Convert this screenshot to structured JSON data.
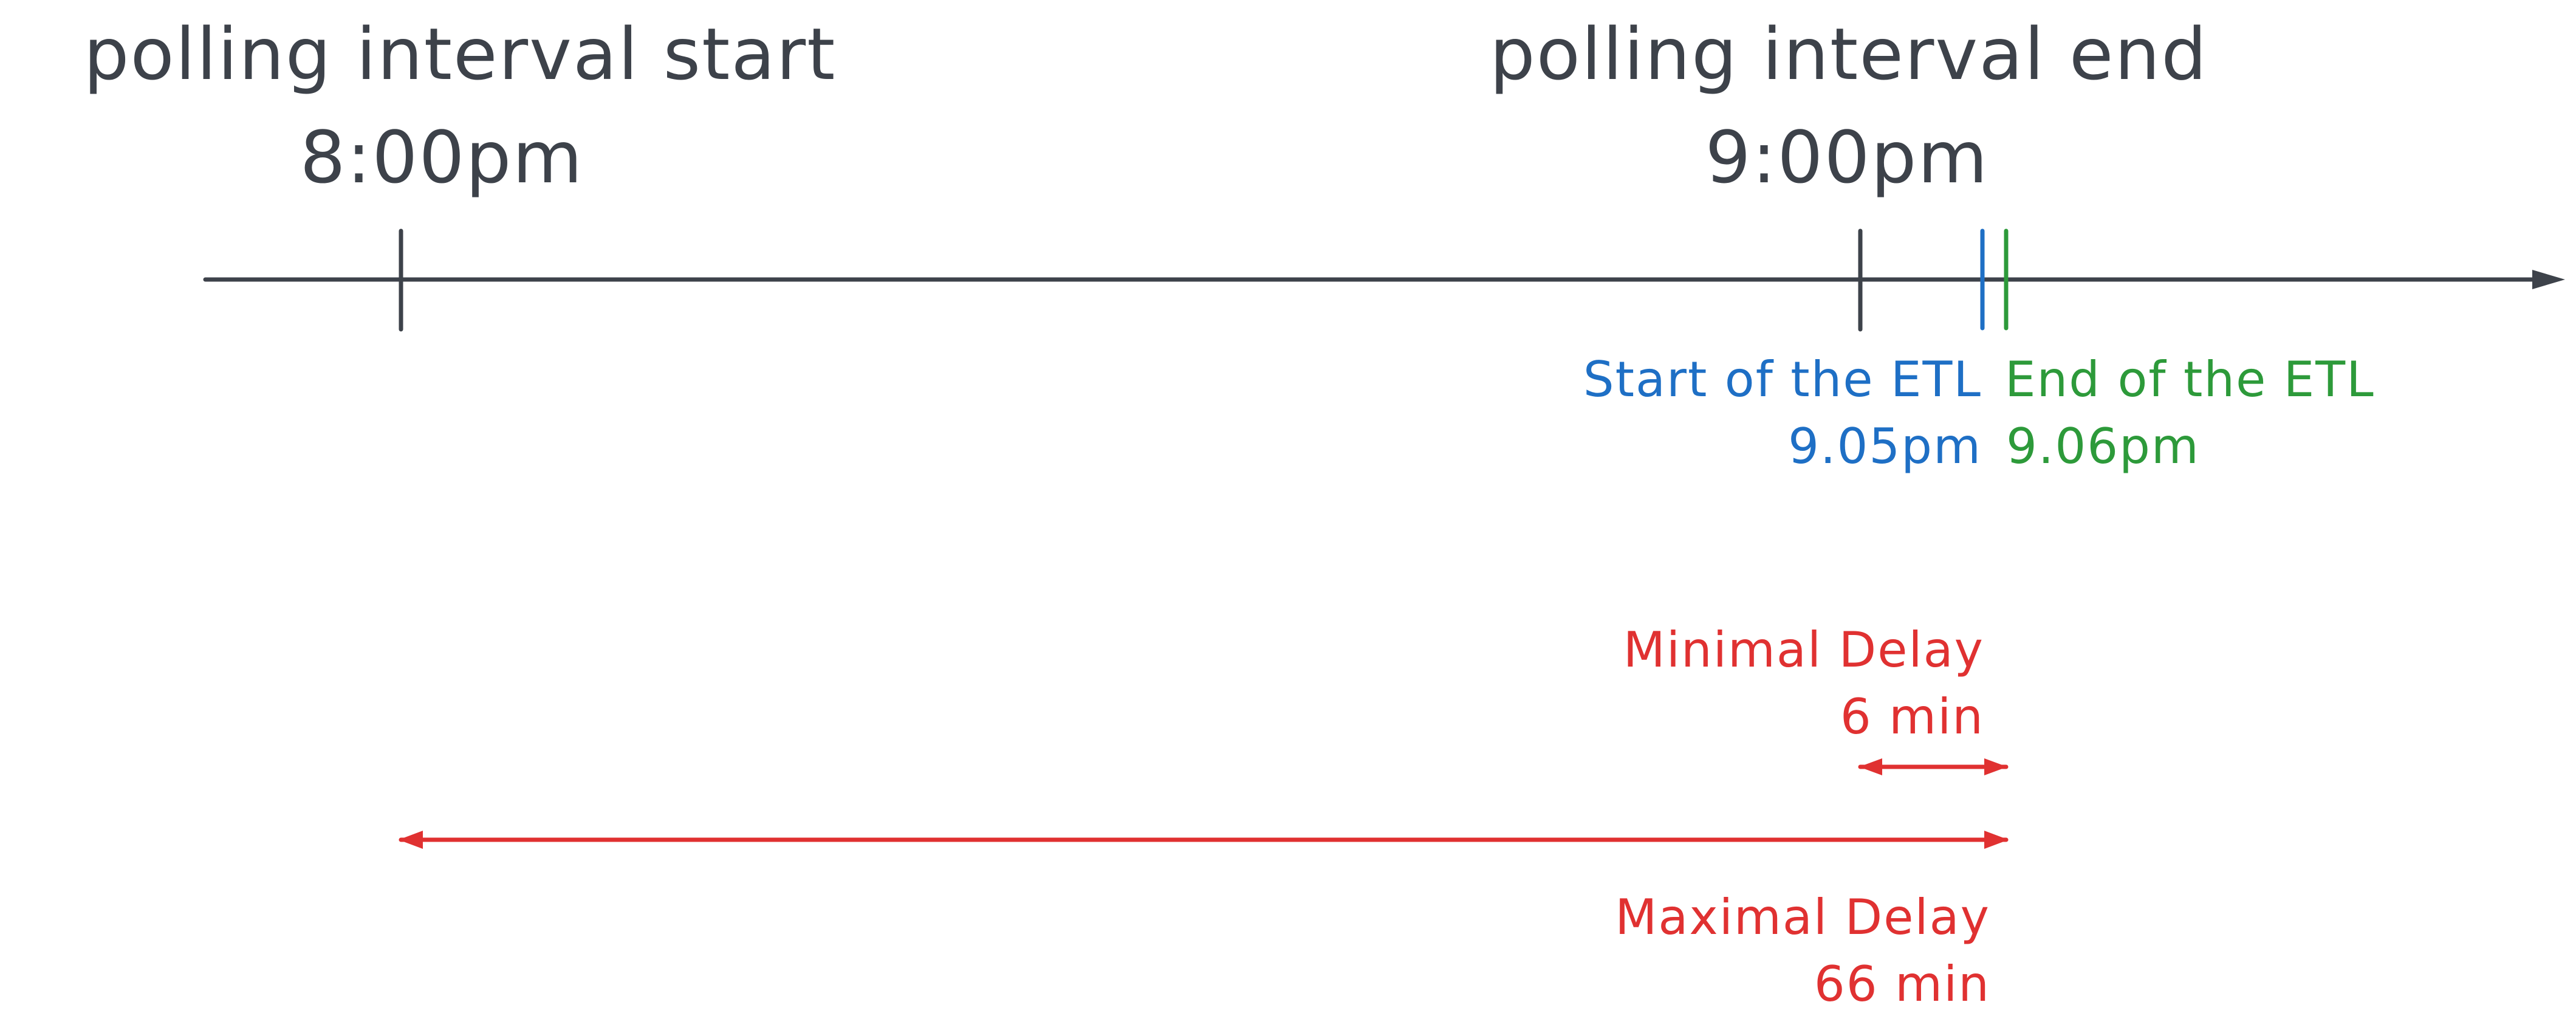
{
  "timeline": {
    "start_label": "polling interval start",
    "start_time": "8:00pm",
    "end_label": "polling interval end",
    "end_time": "9:00pm"
  },
  "etl": {
    "start_label": "Start of the ETL",
    "start_time": "9.05pm",
    "end_label": "End of the ETL",
    "end_time": "9.06pm"
  },
  "delays": {
    "minimal_label": "Minimal Delay",
    "minimal_value": "6 min",
    "maximal_label": "Maximal Delay",
    "maximal_value": "66 min"
  },
  "colors": {
    "axis": "#3d424a",
    "etl_start": "#1e6fc5",
    "etl_end": "#2d9a3a",
    "delay": "#e03131"
  }
}
